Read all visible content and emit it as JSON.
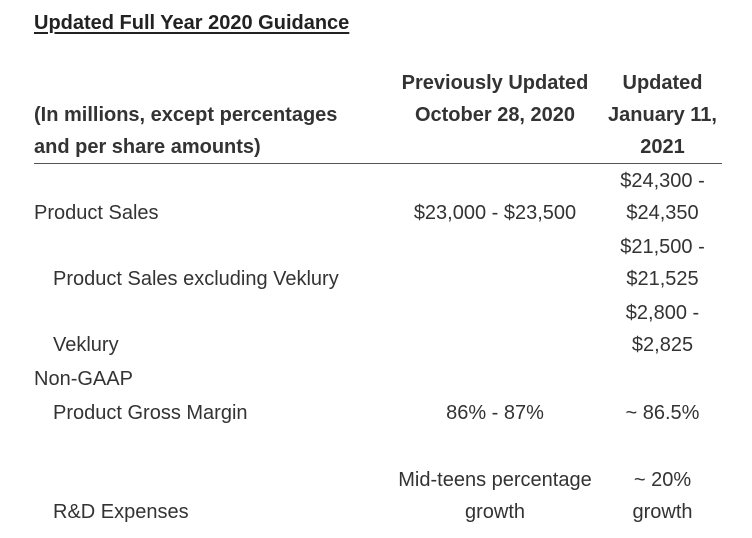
{
  "title": "Updated Full Year 2020 Guidance",
  "header": {
    "label_line1": "(In millions, except percentages",
    "label_line2": "and per share amounts)",
    "prev_line1": "Previously Updated",
    "prev_line2": "October 28, 2020",
    "upd_line1": "Updated",
    "upd_line2": "January 11,",
    "upd_line3": "2021"
  },
  "rows": [
    {
      "label": "Product Sales",
      "previous": "$23,000 - $23,500",
      "updated_line1": "$24,300 -",
      "updated_line2": "$24,350"
    },
    {
      "label": "Product Sales excluding Veklury",
      "previous": "",
      "updated_line1": "$21,500 -",
      "updated_line2": "$21,525"
    },
    {
      "label": "Veklury",
      "previous": "",
      "updated_line1": "$2,800 -",
      "updated_line2": "$2,825"
    },
    {
      "label": "Non-GAAP"
    },
    {
      "label": "Product Gross Margin",
      "previous": "86% - 87%",
      "updated": "~ 86.5%"
    },
    {
      "label": "R&D Expenses",
      "previous_line1": "Mid-teens percentage",
      "previous_line2": "growth",
      "updated_line1": "~ 20%",
      "updated_line2": "growth"
    }
  ]
}
